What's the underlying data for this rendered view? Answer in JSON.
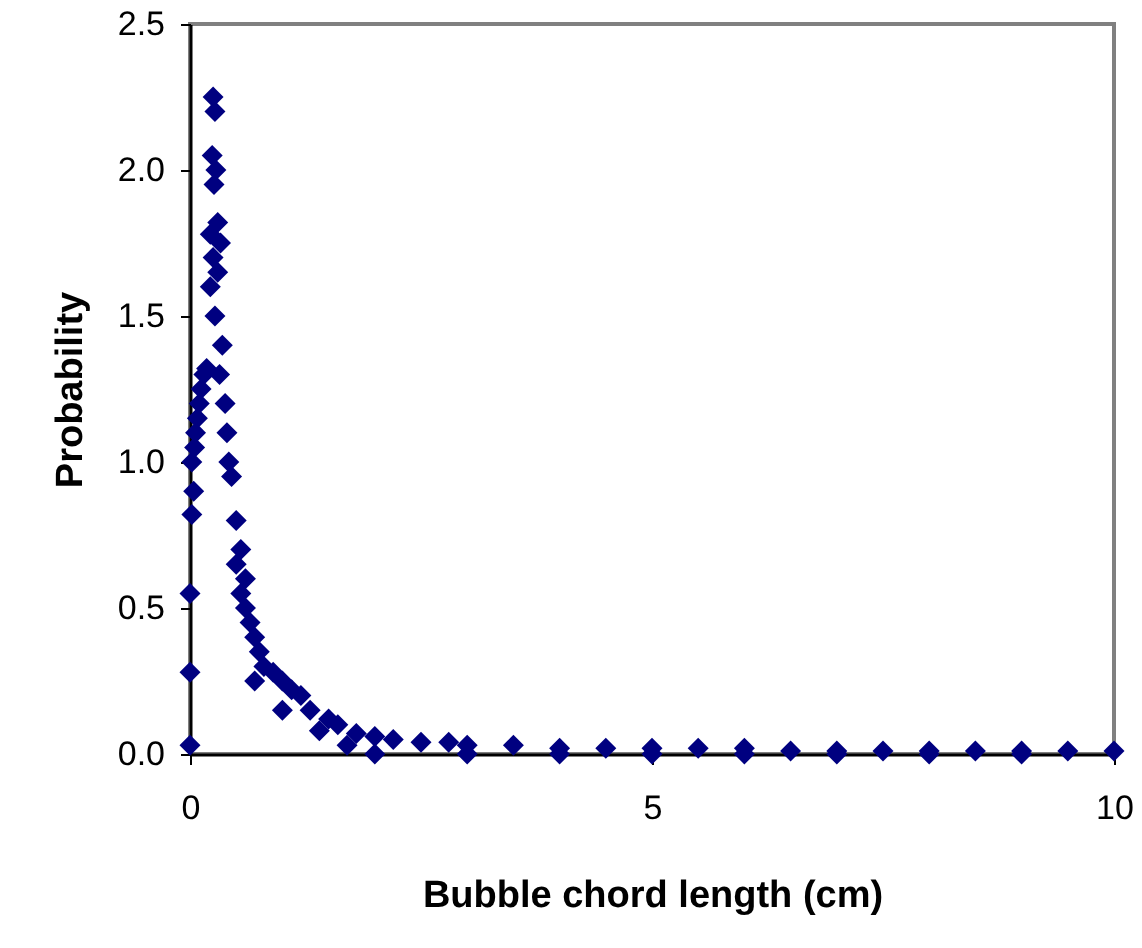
{
  "chart_data": {
    "type": "scatter",
    "xlabel": "Bubble chord length (cm)",
    "ylabel": "Probability",
    "marker": "diamond",
    "grid": false,
    "xlim": [
      0,
      10
    ],
    "ylim": [
      0,
      2.5
    ],
    "xticks": [
      0,
      5,
      10
    ],
    "yticks": [
      {
        "value": 0,
        "label": "0.0"
      },
      {
        "value": 0.5,
        "label": "0.5"
      },
      {
        "value": 1,
        "label": "1.0"
      },
      {
        "value": 1.5,
        "label": "1.5"
      },
      {
        "value": 2,
        "label": "2.0"
      },
      {
        "value": 2.5,
        "label": "2.5"
      }
    ],
    "series": [
      {
        "color": "#000080",
        "x": [
          0.0,
          0.0,
          0.0,
          0.02,
          0.04,
          0.02,
          0.05,
          0.06,
          0.08,
          0.1,
          0.12,
          0.15,
          0.18,
          0.25,
          0.27,
          0.24,
          0.28,
          0.26,
          0.3,
          0.22,
          0.33,
          0.25,
          0.3,
          0.22,
          0.27,
          0.35,
          0.32,
          0.38,
          0.4,
          0.42,
          0.45,
          0.5,
          0.55,
          0.5,
          0.6,
          0.55,
          0.6,
          0.65,
          0.7,
          0.75,
          0.8,
          0.7,
          0.9,
          1.0,
          1.1,
          1.2,
          1.0,
          1.3,
          1.5,
          1.4,
          1.6,
          1.8,
          2.0,
          2.2,
          1.7,
          2.5,
          2.8,
          3.0,
          3.5,
          4.0,
          4.5,
          5.0,
          5.5,
          6.0,
          6.5,
          7.0,
          7.5,
          8.0,
          8.5,
          9.0,
          9.5,
          10.0,
          2.0,
          3.0,
          4.0,
          5.0,
          6.0,
          7.0,
          8.0,
          9.0
        ],
        "values": [
          0.03,
          0.28,
          0.55,
          0.82,
          0.9,
          1.0,
          1.05,
          1.1,
          1.15,
          1.2,
          1.25,
          1.3,
          1.32,
          2.25,
          2.2,
          2.05,
          2.0,
          1.95,
          1.82,
          1.78,
          1.75,
          1.7,
          1.65,
          1.6,
          1.5,
          1.4,
          1.3,
          1.2,
          1.1,
          1.0,
          0.95,
          0.8,
          0.7,
          0.65,
          0.6,
          0.55,
          0.5,
          0.45,
          0.4,
          0.35,
          0.3,
          0.25,
          0.28,
          0.25,
          0.22,
          0.2,
          0.15,
          0.15,
          0.12,
          0.08,
          0.1,
          0.07,
          0.06,
          0.05,
          0.03,
          0.04,
          0.04,
          0.03,
          0.03,
          0.02,
          0.02,
          0.02,
          0.02,
          0.02,
          0.01,
          0.01,
          0.01,
          0.01,
          0.01,
          0.01,
          0.01,
          0.01,
          0.0,
          0.0,
          0.0,
          0.0,
          0.0,
          0.0,
          0.0,
          0.0
        ]
      }
    ]
  }
}
